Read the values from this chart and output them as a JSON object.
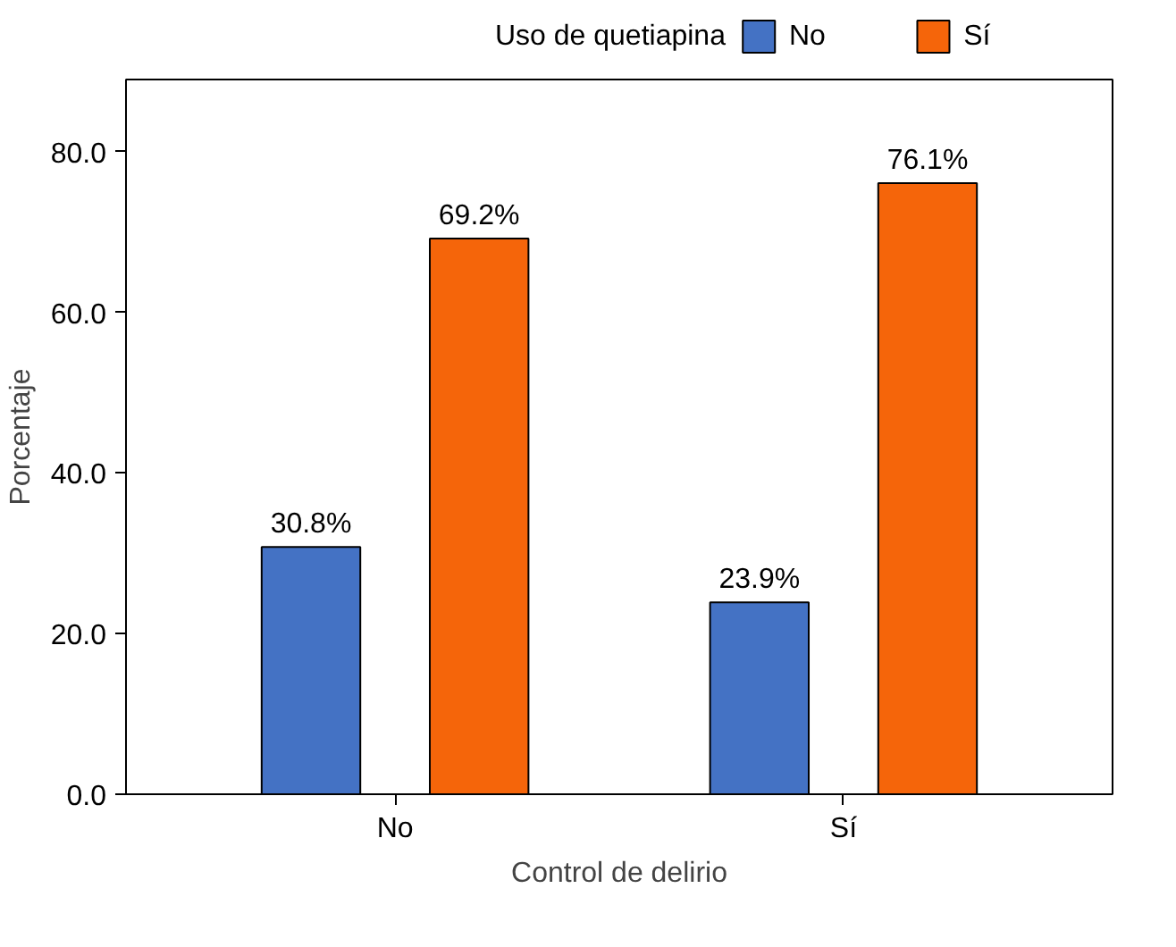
{
  "chart_data": {
    "type": "bar",
    "xlabel": "Control de delirio",
    "ylabel": "Porcentaje",
    "legend_title": "Uso de quetiapina",
    "categories": [
      "No",
      "Sí"
    ],
    "series": [
      {
        "name": "No",
        "color": "#4472c4",
        "values": [
          30.8,
          23.9
        ],
        "value_labels": [
          "30.8%",
          "23.9%"
        ]
      },
      {
        "name": "Sí",
        "color": "#f5650a",
        "values": [
          69.2,
          76.1
        ],
        "value_labels": [
          "69.2%",
          "76.1%"
        ]
      }
    ],
    "ylim": [
      0,
      89
    ],
    "yticks": [
      {
        "value": 0,
        "label": "0.0"
      },
      {
        "value": 20,
        "label": "20.0"
      },
      {
        "value": 40,
        "label": "40.0"
      },
      {
        "value": 60,
        "label": "60.0"
      },
      {
        "value": 80,
        "label": "80.0"
      }
    ],
    "grid": false,
    "legend": "top"
  }
}
